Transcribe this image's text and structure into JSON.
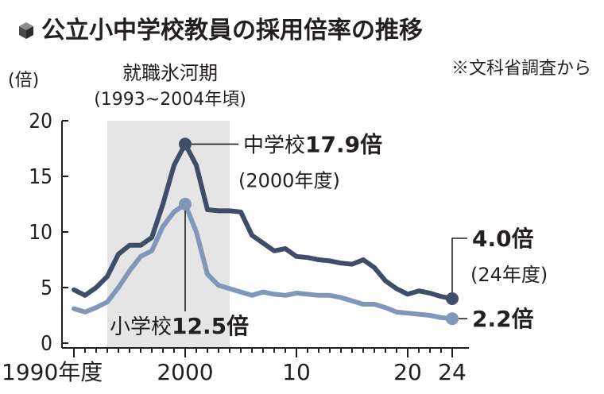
{
  "header": {
    "title": "公立小中学校教員の採用倍率の推移",
    "source": "※文科省調査から"
  },
  "colors": {
    "junior_high": "#3e4d69",
    "elementary": "#7f97b8",
    "shade": "#e5e5e5",
    "text": "#231f20"
  },
  "chart_data": {
    "type": "line",
    "title": "公立小中学校教員の採用倍率の推移",
    "ylabel": "(倍)",
    "xlabel": "",
    "xlim": [
      1990,
      2024
    ],
    "ylim": [
      0,
      20
    ],
    "yticks": [
      "0",
      "5",
      "10",
      "15",
      "20"
    ],
    "xticks": [
      {
        "x": 1990,
        "label": "1990年度"
      },
      {
        "x": 2000,
        "label": "2000"
      },
      {
        "x": 2010,
        "label": "10"
      },
      {
        "x": 2020,
        "label": "20"
      },
      {
        "x": 2024,
        "label": "24"
      }
    ],
    "shaded_region": {
      "x": [
        1993,
        2004
      ],
      "label": "就職氷河期",
      "sublabel": "(1993~2004年頃)"
    },
    "series": [
      {
        "name": "中学校",
        "x": [
          1990,
          1991,
          1992,
          1993,
          1994,
          1995,
          1996,
          1997,
          1998,
          1999,
          2000,
          2001,
          2002,
          2003,
          2004,
          2005,
          2006,
          2007,
          2008,
          2009,
          2010,
          2011,
          2012,
          2013,
          2014,
          2015,
          2016,
          2017,
          2018,
          2019,
          2020,
          2021,
          2022,
          2023,
          2024
        ],
        "values": [
          4.8,
          4.3,
          5.0,
          6.0,
          8.0,
          8.8,
          8.8,
          9.5,
          12.5,
          16.0,
          17.9,
          16.0,
          12.0,
          11.9,
          11.9,
          11.8,
          9.7,
          9.0,
          8.3,
          8.5,
          7.8,
          7.7,
          7.5,
          7.4,
          7.2,
          7.1,
          7.5,
          6.8,
          5.6,
          4.9,
          4.4,
          4.7,
          4.5,
          4.2,
          4.0
        ]
      },
      {
        "name": "小学校",
        "x": [
          1990,
          1991,
          1992,
          1993,
          1994,
          1995,
          1996,
          1997,
          1998,
          1999,
          2000,
          2001,
          2002,
          2003,
          2004,
          2005,
          2006,
          2007,
          2008,
          2009,
          2010,
          2011,
          2012,
          2013,
          2014,
          2015,
          2016,
          2017,
          2018,
          2019,
          2020,
          2021,
          2022,
          2023,
          2024
        ],
        "values": [
          3.1,
          2.8,
          3.2,
          3.7,
          5.0,
          6.5,
          7.8,
          8.3,
          10.5,
          11.8,
          12.5,
          10.0,
          6.2,
          5.2,
          4.9,
          4.6,
          4.3,
          4.6,
          4.4,
          4.3,
          4.5,
          4.4,
          4.3,
          4.3,
          4.1,
          3.8,
          3.5,
          3.5,
          3.2,
          2.8,
          2.7,
          2.6,
          2.5,
          2.3,
          2.2
        ]
      }
    ],
    "annotations": {
      "jh_peak_name": "中学校",
      "jh_peak_value": "17.9倍",
      "jh_peak_year": "(2000年度)",
      "el_peak_name": "小学校",
      "el_peak_value": "12.5倍",
      "jh_end_value": "4.0倍",
      "jh_end_year": "(24年度)",
      "el_end_value": "2.2倍"
    }
  }
}
